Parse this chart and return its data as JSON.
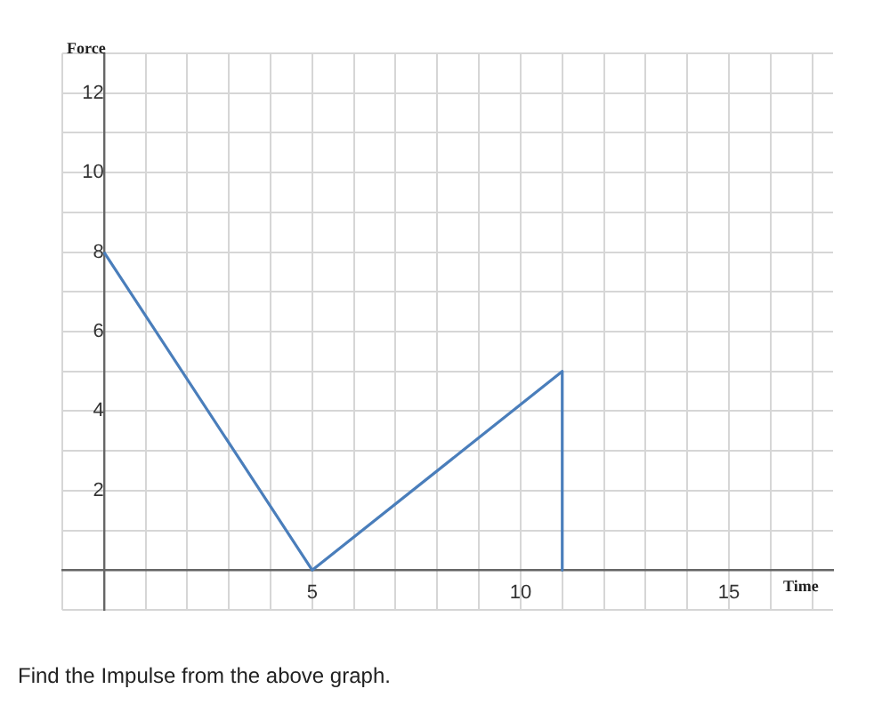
{
  "chart_data": {
    "type": "line",
    "xlabel": "Time",
    "ylabel": "Force",
    "x": [
      0,
      5,
      11,
      11
    ],
    "series": [
      {
        "color": "#4a7ebb",
        "values": [
          8,
          0,
          5,
          0
        ]
      }
    ],
    "xlim": [
      -1,
      17.5
    ],
    "ylim": [
      -1,
      13
    ],
    "xticks": [
      {
        "value": -1,
        "label": null
      },
      {
        "value": 0,
        "label": null
      },
      {
        "value": 1,
        "label": null
      },
      {
        "value": 2,
        "label": null
      },
      {
        "value": 3,
        "label": null
      },
      {
        "value": 4,
        "label": null
      },
      5,
      {
        "value": 6,
        "label": null
      },
      {
        "value": 7,
        "label": null
      },
      {
        "value": 8,
        "label": null
      },
      {
        "value": 9,
        "label": null
      },
      10,
      {
        "value": 11,
        "label": null
      },
      {
        "value": 12,
        "label": null
      },
      {
        "value": 13,
        "label": null
      },
      {
        "value": 14,
        "label": null
      },
      15,
      {
        "value": 16,
        "label": null
      },
      {
        "value": 17,
        "label": null
      }
    ],
    "yticks": [
      {
        "value": -1,
        "label": null
      },
      {
        "value": 0,
        "label": null
      },
      {
        "value": 1,
        "label": null
      },
      2,
      {
        "value": 3,
        "label": null
      },
      4,
      {
        "value": 5,
        "label": null
      },
      6,
      {
        "value": 7,
        "label": null
      },
      8,
      {
        "value": 9,
        "label": null
      },
      10,
      {
        "value": 11,
        "label": null
      },
      12,
      {
        "value": 13,
        "label": null
      }
    ],
    "grid": true,
    "marker": "none",
    "line_style": "solid",
    "annotations": [
      "Find the Impulse from the above graph."
    ]
  }
}
